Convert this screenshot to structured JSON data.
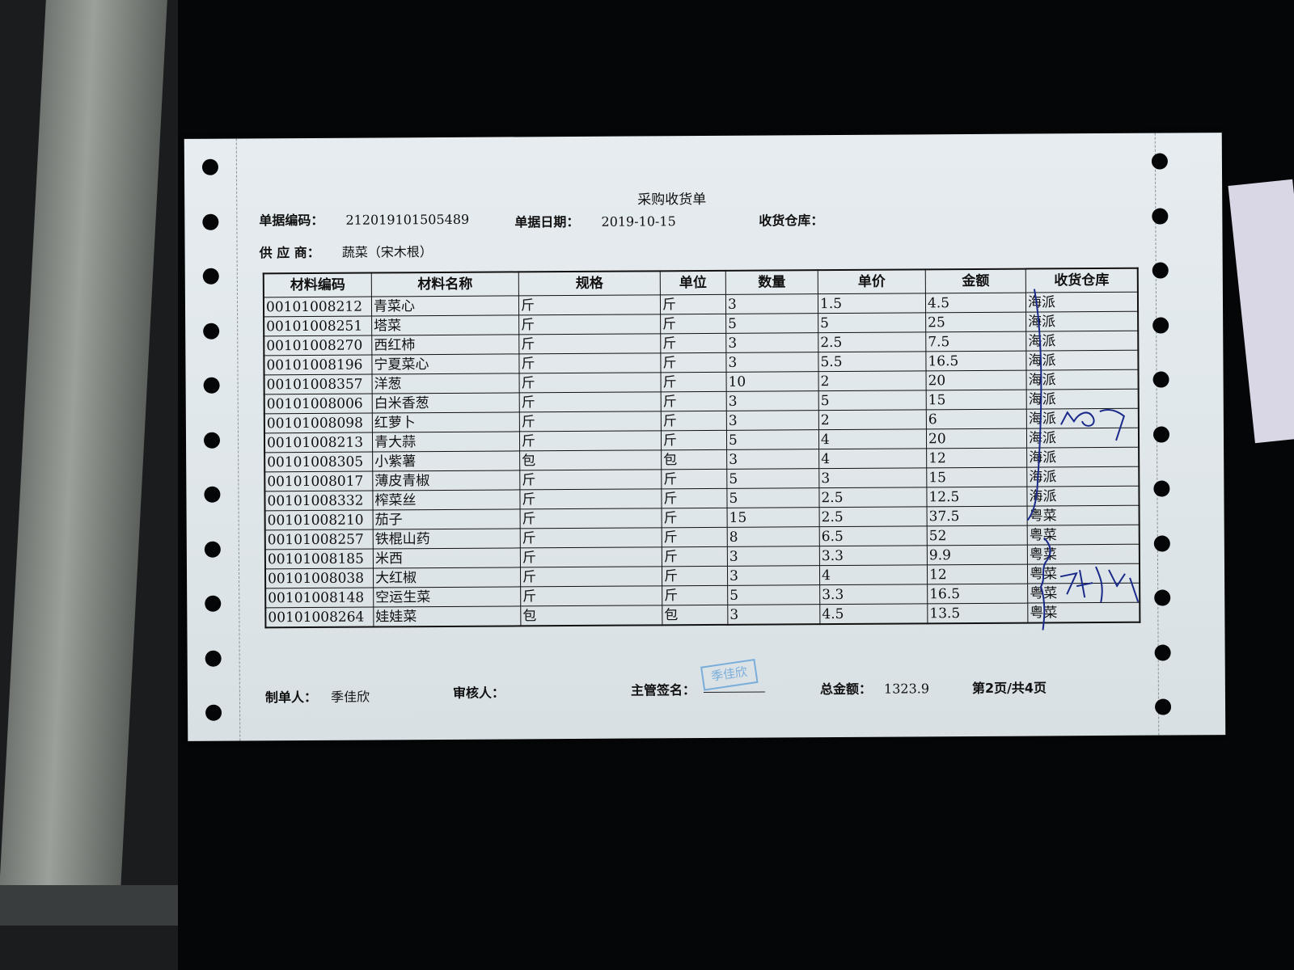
{
  "document": {
    "title": "采购收货单",
    "doc_no_label": "单据编码：",
    "doc_no": "212019101505489",
    "date_label": "单据日期：",
    "date": "2019-10-15",
    "warehouse_label": "收货仓库：",
    "warehouse": "",
    "supplier_label": "供 应 商：",
    "supplier": "蔬菜（宋木根）"
  },
  "table": {
    "headers": [
      "材料编码",
      "材料名称",
      "规格",
      "单位",
      "数量",
      "单价",
      "金额",
      "收货仓库"
    ],
    "rows": [
      [
        "00101008212",
        "青菜心",
        "斤",
        "斤",
        "3",
        "1.5",
        "4.5",
        "海派"
      ],
      [
        "00101008251",
        "塔菜",
        "斤",
        "斤",
        "5",
        "5",
        "25",
        "海派"
      ],
      [
        "00101008270",
        "西红柿",
        "斤",
        "斤",
        "3",
        "2.5",
        "7.5",
        "海派"
      ],
      [
        "00101008196",
        "宁夏菜心",
        "斤",
        "斤",
        "3",
        "5.5",
        "16.5",
        "海派"
      ],
      [
        "00101008357",
        "洋葱",
        "斤",
        "斤",
        "10",
        "2",
        "20",
        "海派"
      ],
      [
        "00101008006",
        "白米香葱",
        "斤",
        "斤",
        "3",
        "5",
        "15",
        "海派"
      ],
      [
        "00101008098",
        "红萝卜",
        "斤",
        "斤",
        "3",
        "2",
        "6",
        "海派"
      ],
      [
        "00101008213",
        "青大蒜",
        "斤",
        "斤",
        "5",
        "4",
        "20",
        "海派"
      ],
      [
        "00101008305",
        "小紫薯",
        "包",
        "包",
        "3",
        "4",
        "12",
        "海派"
      ],
      [
        "00101008017",
        "薄皮青椒",
        "斤",
        "斤",
        "5",
        "3",
        "15",
        "海派"
      ],
      [
        "00101008332",
        "榨菜丝",
        "斤",
        "斤",
        "5",
        "2.5",
        "12.5",
        "海派"
      ],
      [
        "00101008210",
        "茄子",
        "斤",
        "斤",
        "15",
        "2.5",
        "37.5",
        "粤菜"
      ],
      [
        "00101008257",
        "铁棍山药",
        "斤",
        "斤",
        "8",
        "6.5",
        "52",
        "粤菜"
      ],
      [
        "00101008185",
        "米西",
        "斤",
        "斤",
        "3",
        "3.3",
        "9.9",
        "粤菜"
      ],
      [
        "00101008038",
        "大红椒",
        "斤",
        "斤",
        "3",
        "4",
        "12",
        "粤菜"
      ],
      [
        "00101008148",
        "空运生菜",
        "斤",
        "斤",
        "5",
        "3.3",
        "16.5",
        "粤菜"
      ],
      [
        "00101008264",
        "娃娃菜",
        "包",
        "包",
        "3",
        "4.5",
        "13.5",
        "粤菜"
      ]
    ]
  },
  "footer": {
    "maker_label": "制单人：",
    "maker": "季佳欣",
    "reviewer_label": "审核人：",
    "reviewer": "",
    "supervisor_label": "主管签名：",
    "supervisor_stamp": "季佳欣",
    "total_label": "总金额：",
    "total": "1323.9",
    "page": "第2页/共4页"
  },
  "colors": {
    "stamp": "#6aa6d8",
    "ink": "#1a2a8a",
    "paper": "#e2e9ed"
  }
}
